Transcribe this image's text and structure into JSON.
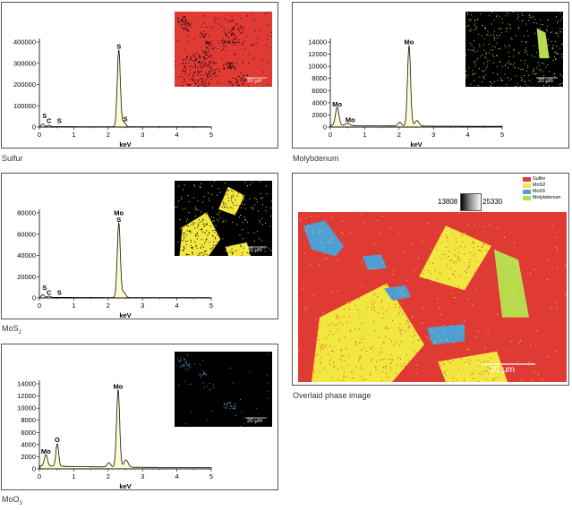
{
  "colors": {
    "spectrum_fill": "#fdfbd0",
    "spectrum_line": "#111111",
    "sulfur_red": "#e03a35",
    "mos2_yellow": "#f2e640",
    "moo3_blue": "#4f9fd3",
    "mo_green": "#b9dc4e",
    "inset_black": "#000000"
  },
  "captions": {
    "sulfur": "Sulfur",
    "molybdenum": "Molybdenum",
    "mos2_base": "MoS",
    "mos2_sub": "2",
    "moo3_base": "MoO",
    "moo3_sub": "3",
    "overlay": "Overlaid phase image"
  },
  "scale_bar": "20 μm",
  "overlay_legend": [
    {
      "label": "Sulfer",
      "color": "#e03a35"
    },
    {
      "label": "MoS2",
      "color": "#f2e640"
    },
    {
      "label": "Mo03",
      "color": "#4f9fd3"
    },
    {
      "label": "Molybdenum",
      "color": "#b9dc4e"
    }
  ],
  "colorbar": {
    "min": "13808",
    "max": "25330"
  },
  "chart_data": [
    {
      "id": "sulfur",
      "type": "line",
      "title": "Sulfur",
      "xlabel": "keV",
      "ylabel": "",
      "xlim": [
        0,
        5
      ],
      "ylim": [
        0,
        400000
      ],
      "xticks": [
        0,
        1,
        2,
        3,
        4,
        5
      ],
      "yticks": [
        0,
        100000,
        200000,
        300000,
        400000
      ],
      "yticklabels": [
        "0",
        "100000",
        "200000",
        "300000",
        "400000"
      ],
      "peaks": [
        {
          "x": 0.1,
          "y": 12000,
          "w": 0.04
        },
        {
          "x": 0.28,
          "y": 6000,
          "w": 0.04
        },
        {
          "x": 2.31,
          "y": 360000,
          "w": 0.045
        },
        {
          "x": 2.46,
          "y": 22000,
          "w": 0.05
        }
      ],
      "background": 2500,
      "labels": [
        {
          "text": "S",
          "x": 0.15,
          "y": 42000
        },
        {
          "text": "C",
          "x": 0.28,
          "y": 18000
        },
        {
          "text": "S",
          "x": 0.58,
          "y": 18000
        },
        {
          "text": "S",
          "x": 2.31,
          "y": 368000
        },
        {
          "text": "S",
          "x": 2.5,
          "y": 28000
        }
      ]
    },
    {
      "id": "molybdenum",
      "type": "line",
      "title": "Molybdenum",
      "xlabel": "keV",
      "ylabel": "",
      "xlim": [
        0,
        5
      ],
      "ylim": [
        0,
        14000
      ],
      "xticks": [
        0,
        1,
        2,
        3,
        4,
        5
      ],
      "yticks": [
        0,
        2000,
        4000,
        6000,
        8000,
        10000,
        12000,
        14000
      ],
      "yticklabels": [
        "0",
        "2000",
        "4000",
        "6000",
        "8000",
        "10000",
        "12000",
        "14000"
      ],
      "peaks": [
        {
          "x": 0.2,
          "y": 3000,
          "w": 0.05
        },
        {
          "x": 0.5,
          "y": 350,
          "w": 0.06
        },
        {
          "x": 2.02,
          "y": 600,
          "w": 0.05
        },
        {
          "x": 2.29,
          "y": 13200,
          "w": 0.045
        },
        {
          "x": 2.52,
          "y": 900,
          "w": 0.06
        }
      ],
      "background": 300,
      "labels": [
        {
          "text": "Mo",
          "x": 0.2,
          "y": 3400
        },
        {
          "text": "Mo",
          "x": 0.58,
          "y": 800
        },
        {
          "text": "Mo",
          "x": 2.29,
          "y": 13600
        }
      ]
    },
    {
      "id": "mos2",
      "type": "line",
      "title": "MoS2",
      "xlabel": "keV",
      "ylabel": "",
      "xlim": [
        0,
        5
      ],
      "ylim": [
        0,
        80000
      ],
      "xticks": [
        0,
        1,
        2,
        3,
        4,
        5
      ],
      "yticks": [
        0,
        20000,
        40000,
        60000,
        80000
      ],
      "yticklabels": [
        "0",
        "20000",
        "40000",
        "60000",
        "80000"
      ],
      "peaks": [
        {
          "x": 0.1,
          "y": 2500,
          "w": 0.04
        },
        {
          "x": 0.28,
          "y": 1200,
          "w": 0.04
        },
        {
          "x": 2.31,
          "y": 70000,
          "w": 0.045
        },
        {
          "x": 2.46,
          "y": 5000,
          "w": 0.05
        }
      ],
      "background": 600,
      "labels": [
        {
          "text": "S",
          "x": 0.15,
          "y": 7500
        },
        {
          "text": "C",
          "x": 0.28,
          "y": 3000
        },
        {
          "text": "S",
          "x": 0.58,
          "y": 3000
        },
        {
          "text": "Mo",
          "x": 2.31,
          "y": 78000
        },
        {
          "text": "S",
          "x": 2.31,
          "y": 71500
        }
      ]
    },
    {
      "id": "moo3",
      "type": "line",
      "title": "MoO3",
      "xlabel": "keV",
      "ylabel": "",
      "xlim": [
        0,
        5
      ],
      "ylim": [
        0,
        14000
      ],
      "xticks": [
        0,
        1,
        2,
        3,
        4,
        5
      ],
      "yticks": [
        0,
        2000,
        4000,
        6000,
        8000,
        10000,
        12000,
        14000
      ],
      "yticklabels": [
        "0",
        "2000",
        "4000",
        "6000",
        "8000",
        "10000",
        "12000",
        "14000"
      ],
      "peaks": [
        {
          "x": 0.19,
          "y": 1900,
          "w": 0.045
        },
        {
          "x": 0.52,
          "y": 3700,
          "w": 0.04
        },
        {
          "x": 2.02,
          "y": 700,
          "w": 0.05
        },
        {
          "x": 2.29,
          "y": 12700,
          "w": 0.045
        },
        {
          "x": 2.52,
          "y": 1200,
          "w": 0.06
        }
      ],
      "background": 500,
      "labels": [
        {
          "text": "Mo",
          "x": 0.19,
          "y": 2500
        },
        {
          "text": "O",
          "x": 0.52,
          "y": 4400
        },
        {
          "text": "Mo",
          "x": 2.29,
          "y": 13200
        }
      ]
    }
  ]
}
